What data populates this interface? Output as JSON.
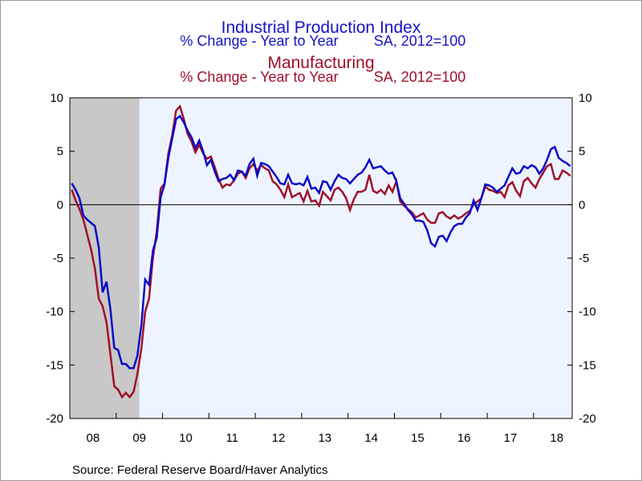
{
  "titles": {
    "title1": "Industrial Production Index",
    "sub1_left": "% Change - Year to Year",
    "sub1_right": "SA, 2012=100",
    "title2": "Manufacturing",
    "sub2_left": "% Change - Year to Year",
    "sub2_right": "SA, 2012=100"
  },
  "source": "Source:  Federal Reserve Board/Haver Analytics",
  "colors": {
    "industrial": "#0a0ac8",
    "manufacturing": "#a0102a",
    "recession": "#c8c8c8",
    "plot_bg": "#eef4ff"
  },
  "chart_data": {
    "type": "line",
    "x_start": "2008-01",
    "x_end": "2018-12",
    "x_step": "month",
    "ylim": [
      -20,
      10
    ],
    "yticks": [
      10,
      5,
      0,
      -5,
      -10,
      -15,
      -20
    ],
    "xticks": [
      "08",
      "09",
      "10",
      "11",
      "12",
      "13",
      "14",
      "15",
      "16",
      "17",
      "18"
    ],
    "recession_shading": {
      "start": "2008-01",
      "end": "2009-06"
    },
    "zero_line": true,
    "series": [
      {
        "name": "Industrial Production Index",
        "color": "#0a0ac8",
        "values": [
          2.0,
          1.4,
          0.6,
          -1.0,
          -1.4,
          -1.7,
          -2.0,
          -4.0,
          -8.2,
          -7.2,
          -9.8,
          -13.4,
          -13.6,
          -14.9,
          -14.9,
          -15.3,
          -15.3,
          -14.1,
          -11.3,
          -7.0,
          -7.5,
          -4.3,
          -3.1,
          0.7,
          1.9,
          4.4,
          6.2,
          8.0,
          8.3,
          7.7,
          6.9,
          6.3,
          5.3,
          6.0,
          5.0,
          3.7,
          4.2,
          3.1,
          2.2,
          2.4,
          2.5,
          2.8,
          2.3,
          3.2,
          3.1,
          2.7,
          3.8,
          4.3,
          2.7,
          3.9,
          3.8,
          3.6,
          3.1,
          2.6,
          2.0,
          1.9,
          2.8,
          2.0,
          1.9,
          2.0,
          1.8,
          2.6,
          1.5,
          1.6,
          1.1,
          2.2,
          2.1,
          1.4,
          2.2,
          2.8,
          2.5,
          2.4,
          2.0,
          2.4,
          2.8,
          3.0,
          3.5,
          4.2,
          3.4,
          3.5,
          3.6,
          3.2,
          2.9,
          3.0,
          2.2,
          0.6,
          0.1,
          -0.5,
          -0.9,
          -1.5,
          -1.5,
          -1.6,
          -2.4,
          -3.6,
          -3.9,
          -3.0,
          -2.9,
          -3.4,
          -2.6,
          -2.0,
          -1.8,
          -1.8,
          -1.2,
          -0.8,
          0.4,
          -0.5,
          0.6,
          1.9,
          1.8,
          1.6,
          1.2,
          1.5,
          1.8,
          2.6,
          3.4,
          2.9,
          3.0,
          3.6,
          3.4,
          3.7,
          3.5,
          2.9,
          3.4,
          4.2,
          5.2,
          5.4,
          4.4,
          4.1,
          3.9,
          3.6
        ]
      },
      {
        "name": "Manufacturing",
        "color": "#a0102a",
        "values": [
          1.4,
          0.4,
          -0.4,
          -1.4,
          -2.8,
          -4.2,
          -6.0,
          -8.8,
          -9.5,
          -11.0,
          -14.0,
          -17.0,
          -17.3,
          -18.0,
          -17.6,
          -18.0,
          -17.5,
          -15.8,
          -13.5,
          -10.0,
          -8.8,
          -5.0,
          -2.5,
          1.5,
          2.0,
          4.8,
          6.5,
          8.8,
          9.2,
          8.0,
          6.6,
          5.9,
          4.9,
          5.6,
          4.8,
          4.3,
          4.5,
          3.5,
          2.4,
          1.6,
          1.9,
          1.8,
          2.3,
          2.9,
          3.1,
          2.5,
          3.4,
          3.8,
          3.2,
          3.7,
          3.4,
          3.2,
          2.2,
          1.9,
          1.4,
          0.7,
          1.9,
          0.7,
          0.9,
          1.1,
          0.3,
          1.3,
          0.3,
          0.4,
          -0.1,
          1.2,
          0.8,
          0.4,
          1.4,
          1.6,
          1.2,
          0.6,
          -0.5,
          0.5,
          1.2,
          1.2,
          1.4,
          2.8,
          1.3,
          1.1,
          1.4,
          1.0,
          1.8,
          1.2,
          2.2,
          0.3,
          -0.1,
          -0.4,
          -0.7,
          -1.2,
          -1.0,
          -0.8,
          -1.4,
          -1.7,
          -1.7,
          -0.8,
          -0.7,
          -1.1,
          -1.3,
          -1.0,
          -1.3,
          -1.1,
          -0.8,
          -0.6,
          0.0,
          0.3,
          0.6,
          1.7,
          1.4,
          1.3,
          1.1,
          1.2,
          0.7,
          1.8,
          2.1,
          1.3,
          0.8,
          2.2,
          2.5,
          2.0,
          1.6,
          2.4,
          3.0,
          3.6,
          3.8,
          2.4,
          2.4,
          3.2,
          3.0,
          2.7
        ]
      }
    ]
  }
}
